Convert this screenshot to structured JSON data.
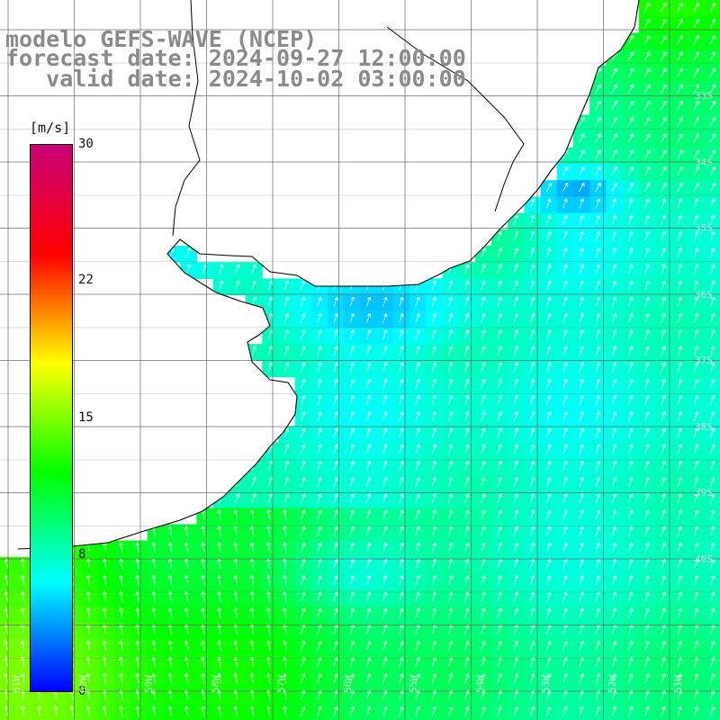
{
  "title": {
    "line1": "modelo GEFS-WAVE (NCEP)",
    "line2": "forecast date: 2024-09-27 12:00:00",
    "line3": "   valid date: 2024-10-02 03:00:00"
  },
  "legend": {
    "unit": "[m/s]",
    "ticks": [
      "30",
      "22",
      "15",
      "8",
      "0"
    ],
    "tick_values": [
      30,
      22,
      15,
      8,
      0
    ],
    "range": [
      0,
      30
    ],
    "colors": [
      "#0000ff",
      "#00ffff",
      "#00ff00",
      "#ffff00",
      "#ff0000",
      "#c80078"
    ]
  },
  "map": {
    "land_color": "#ffffff",
    "coast_color": "#000000",
    "grid_color": "#666666",
    "arrow_color": "#ffffff",
    "lat_labels": [
      "33S",
      "34S",
      "35S",
      "36S",
      "37S",
      "38S",
      "39S",
      "40S"
    ],
    "lon_labels": [
      "61W",
      "60W",
      "59W",
      "58W",
      "57W",
      "56W",
      "55W",
      "54W",
      "53W",
      "52W",
      "51W"
    ]
  }
}
